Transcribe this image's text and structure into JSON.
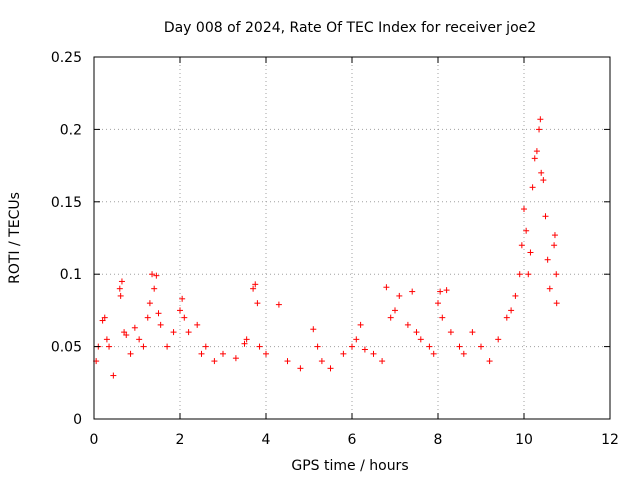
{
  "chart_data": {
    "type": "scatter",
    "title": "Day 008 of 2024, Rate Of TEC Index for receiver joe2",
    "xlabel": "GPS time / hours",
    "ylabel": "ROTI / TECUs",
    "xlim": [
      0,
      12
    ],
    "ylim": [
      0,
      0.25
    ],
    "xticks": [
      0,
      2,
      4,
      6,
      8,
      10,
      12
    ],
    "yticks": [
      0,
      0.05,
      0.1,
      0.15,
      0.2,
      0.25
    ],
    "xtick_labels": [
      "0",
      "2",
      "4",
      "6",
      "8",
      "10",
      "12"
    ],
    "ytick_labels": [
      "0",
      "0.05",
      "0.1",
      "0.15",
      "0.2",
      "0.25"
    ],
    "grid": true,
    "marker": "+",
    "color": "#ff0000",
    "series": [
      {
        "name": "ROTI",
        "points": [
          [
            0.05,
            0.04
          ],
          [
            0.1,
            0.05
          ],
          [
            0.2,
            0.068
          ],
          [
            0.25,
            0.07
          ],
          [
            0.3,
            0.055
          ],
          [
            0.35,
            0.05
          ],
          [
            0.45,
            0.03
          ],
          [
            0.6,
            0.09
          ],
          [
            0.65,
            0.095
          ],
          [
            0.62,
            0.085
          ],
          [
            0.7,
            0.06
          ],
          [
            0.75,
            0.058
          ],
          [
            0.85,
            0.045
          ],
          [
            0.95,
            0.063
          ],
          [
            1.05,
            0.055
          ],
          [
            1.15,
            0.05
          ],
          [
            1.25,
            0.07
          ],
          [
            1.3,
            0.08
          ],
          [
            1.35,
            0.1
          ],
          [
            1.4,
            0.09
          ],
          [
            1.45,
            0.099
          ],
          [
            1.5,
            0.073
          ],
          [
            1.55,
            0.065
          ],
          [
            1.7,
            0.05
          ],
          [
            1.85,
            0.06
          ],
          [
            2.0,
            0.075
          ],
          [
            2.05,
            0.083
          ],
          [
            2.1,
            0.07
          ],
          [
            2.2,
            0.06
          ],
          [
            2.4,
            0.065
          ],
          [
            2.5,
            0.045
          ],
          [
            2.6,
            0.05
          ],
          [
            2.8,
            0.04
          ],
          [
            3.0,
            0.045
          ],
          [
            3.3,
            0.042
          ],
          [
            3.5,
            0.052
          ],
          [
            3.55,
            0.055
          ],
          [
            3.7,
            0.09
          ],
          [
            3.75,
            0.093
          ],
          [
            3.8,
            0.08
          ],
          [
            3.85,
            0.05
          ],
          [
            4.0,
            0.045
          ],
          [
            4.3,
            0.079
          ],
          [
            4.5,
            0.04
          ],
          [
            4.8,
            0.035
          ],
          [
            5.1,
            0.062
          ],
          [
            5.2,
            0.05
          ],
          [
            5.3,
            0.04
          ],
          [
            5.5,
            0.035
          ],
          [
            5.8,
            0.045
          ],
          [
            6.0,
            0.05
          ],
          [
            6.1,
            0.055
          ],
          [
            6.2,
            0.065
          ],
          [
            6.3,
            0.048
          ],
          [
            6.5,
            0.045
          ],
          [
            6.7,
            0.04
          ],
          [
            6.8,
            0.091
          ],
          [
            6.9,
            0.07
          ],
          [
            7.0,
            0.075
          ],
          [
            7.1,
            0.085
          ],
          [
            7.3,
            0.065
          ],
          [
            7.4,
            0.088
          ],
          [
            7.5,
            0.06
          ],
          [
            7.6,
            0.055
          ],
          [
            7.8,
            0.05
          ],
          [
            7.9,
            0.045
          ],
          [
            8.0,
            0.08
          ],
          [
            8.05,
            0.088
          ],
          [
            8.1,
            0.07
          ],
          [
            8.2,
            0.089
          ],
          [
            8.3,
            0.06
          ],
          [
            8.5,
            0.05
          ],
          [
            8.6,
            0.045
          ],
          [
            8.8,
            0.06
          ],
          [
            9.0,
            0.05
          ],
          [
            9.2,
            0.04
          ],
          [
            9.4,
            0.055
          ],
          [
            9.6,
            0.07
          ],
          [
            9.7,
            0.075
          ],
          [
            9.8,
            0.085
          ],
          [
            9.9,
            0.1
          ],
          [
            9.95,
            0.12
          ],
          [
            10.0,
            0.145
          ],
          [
            10.05,
            0.13
          ],
          [
            10.1,
            0.1
          ],
          [
            10.15,
            0.115
          ],
          [
            10.2,
            0.16
          ],
          [
            10.25,
            0.18
          ],
          [
            10.3,
            0.185
          ],
          [
            10.35,
            0.2
          ],
          [
            10.38,
            0.207
          ],
          [
            10.4,
            0.17
          ],
          [
            10.45,
            0.165
          ],
          [
            10.5,
            0.14
          ],
          [
            10.55,
            0.11
          ],
          [
            10.6,
            0.09
          ],
          [
            10.7,
            0.12
          ],
          [
            10.72,
            0.127
          ],
          [
            10.75,
            0.1
          ],
          [
            10.76,
            0.08
          ]
        ]
      }
    ]
  }
}
